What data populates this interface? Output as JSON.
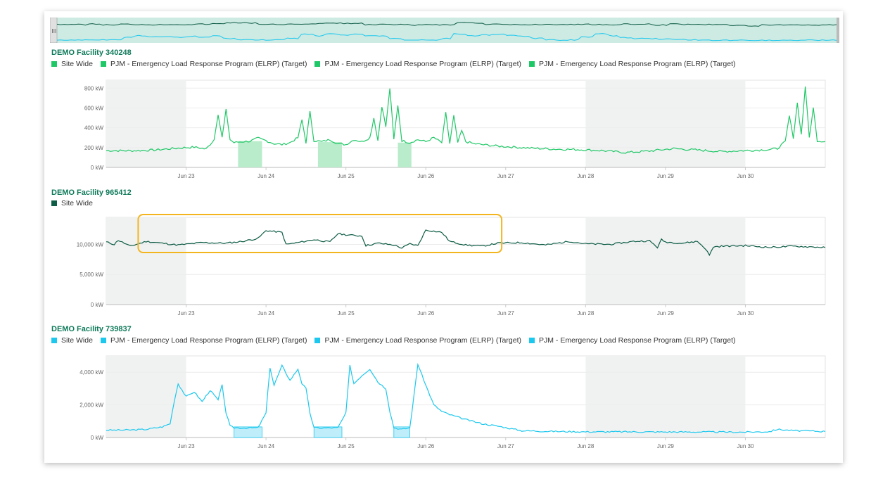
{
  "colors": {
    "green": "#1fc866",
    "dark_green": "#0d5c45",
    "cyan": "#1cc8ee",
    "title": "#0f7a5a",
    "highlight": "#f3b51f"
  },
  "shared_x_ticks": [
    "Jun 23",
    "Jun 24",
    "Jun 25",
    "Jun 26",
    "Jun 27",
    "Jun 28",
    "Jun 29",
    "Jun 30"
  ],
  "chart_data": [
    {
      "type": "line",
      "title": "DEMO Facility 340248",
      "legend": [
        "Site Wide",
        "PJM - Emergency Load Response Program (ELRP) (Target)",
        "PJM - Emergency Load Response Program (ELRP) (Target)",
        "PJM - Emergency Load Response Program (ELRP) (Target)"
      ],
      "xlabel": "",
      "ylabel": "",
      "y_ticks": [
        "0 kW",
        "200 kW",
        "400 kW",
        "600 kW",
        "800 kW"
      ],
      "ylim": [
        0,
        880
      ],
      "x_range_days": [
        22.0,
        31.0
      ],
      "weekend_shading_days": [
        [
          22.0,
          23.0
        ],
        [
          28.0,
          30.0
        ]
      ],
      "target_event_days": [
        [
          23.65,
          23.95,
          265
        ],
        [
          24.65,
          24.95,
          255
        ],
        [
          25.65,
          25.82,
          250
        ]
      ],
      "series": [
        {
          "name": "Site Wide",
          "x_days": [
            22.0,
            22.3,
            22.6,
            22.9,
            23.1,
            23.25,
            23.35,
            23.4,
            23.45,
            23.5,
            23.55,
            23.6,
            23.7,
            23.8,
            23.9,
            24.0,
            24.1,
            24.2,
            24.3,
            24.4,
            24.45,
            24.5,
            24.55,
            24.6,
            24.7,
            24.8,
            24.9,
            25.0,
            25.1,
            25.2,
            25.3,
            25.35,
            25.4,
            25.45,
            25.5,
            25.55,
            25.6,
            25.65,
            25.7,
            25.8,
            25.9,
            26.0,
            26.1,
            26.2,
            26.25,
            26.3,
            26.35,
            26.4,
            26.45,
            26.5,
            26.6,
            26.7,
            26.9,
            27.1,
            27.3,
            27.6,
            27.9,
            28.2,
            28.5,
            28.8,
            29.1,
            29.4,
            29.7,
            30.0,
            30.3,
            30.4,
            30.5,
            30.55,
            30.6,
            30.65,
            30.7,
            30.75,
            30.8,
            30.85,
            30.9,
            31.0
          ],
          "values": [
            170,
            168,
            175,
            195,
            205,
            185,
            280,
            540,
            300,
            580,
            280,
            250,
            260,
            265,
            295,
            270,
            240,
            230,
            250,
            300,
            480,
            250,
            560,
            270,
            260,
            280,
            240,
            230,
            280,
            260,
            300,
            500,
            270,
            620,
            410,
            800,
            280,
            630,
            270,
            250,
            280,
            260,
            300,
            250,
            550,
            240,
            520,
            250,
            370,
            260,
            240,
            230,
            215,
            205,
            195,
            185,
            180,
            170,
            150,
            165,
            190,
            175,
            160,
            170,
            180,
            190,
            260,
            520,
            300,
            650,
            330,
            820,
            300,
            600,
            270,
            260
          ]
        }
      ]
    },
    {
      "type": "line",
      "title": "DEMO Facility 965412",
      "legend": [
        "Site Wide"
      ],
      "xlabel": "",
      "ylabel": "",
      "y_ticks": [
        "0 kW",
        "5,000 kW",
        "10,000 kW"
      ],
      "ylim": [
        0,
        14500
      ],
      "x_range_days": [
        22.0,
        31.0
      ],
      "weekend_shading_days": [
        [
          22.0,
          23.0
        ],
        [
          28.0,
          30.0
        ]
      ],
      "highlight_box_days": [
        22.4,
        26.95
      ],
      "series": [
        {
          "name": "Site Wide",
          "x_days": [
            22.0,
            22.1,
            22.15,
            22.3,
            22.5,
            22.7,
            22.9,
            23.2,
            23.5,
            23.7,
            23.9,
            24.0,
            24.2,
            24.25,
            24.4,
            24.6,
            24.8,
            24.9,
            25.0,
            25.2,
            25.25,
            25.4,
            25.6,
            25.7,
            25.8,
            25.9,
            26.0,
            26.2,
            26.3,
            26.5,
            26.7,
            26.9,
            27.2,
            27.5,
            27.8,
            28.0,
            28.3,
            28.6,
            28.8,
            28.9,
            28.95,
            29.0,
            29.2,
            29.4,
            29.5,
            29.55,
            29.6,
            29.7,
            30.0,
            30.3,
            30.6,
            31.0
          ],
          "values": [
            10400,
            10000,
            10700,
            9700,
            10500,
            10200,
            9900,
            10300,
            10200,
            10500,
            11000,
            12300,
            12000,
            10000,
            10300,
            10800,
            10400,
            11800,
            11600,
            11400,
            9800,
            10200,
            9900,
            9400,
            10100,
            9800,
            12400,
            12000,
            10500,
            9900,
            9700,
            10200,
            10300,
            9900,
            10500,
            10100,
            10000,
            10500,
            10600,
            9500,
            10800,
            10400,
            10200,
            10500,
            9300,
            8200,
            9600,
            9700,
            9800,
            9500,
            9700,
            9500
          ]
        }
      ]
    },
    {
      "type": "line",
      "title": "DEMO Facility 739837",
      "legend": [
        "Site Wide",
        "PJM - Emergency Load Response Program (ELRP) (Target)",
        "PJM - Emergency Load Response Program (ELRP) (Target)",
        "PJM - Emergency Load Response Program (ELRP) (Target)"
      ],
      "xlabel": "",
      "ylabel": "",
      "y_ticks": [
        "0 kW",
        "2,000 kW",
        "4,000 kW"
      ],
      "ylim": [
        0,
        5000
      ],
      "x_range_days": [
        22.0,
        31.0
      ],
      "weekend_shading_days": [
        [
          22.0,
          23.0
        ],
        [
          28.0,
          30.0
        ]
      ],
      "target_event_days": [
        [
          23.6,
          23.95,
          650
        ],
        [
          24.6,
          24.95,
          650
        ],
        [
          25.6,
          25.8,
          650
        ]
      ],
      "series": [
        {
          "name": "Site Wide",
          "x_days": [
            22.0,
            22.3,
            22.5,
            22.7,
            22.8,
            22.85,
            22.9,
            23.0,
            23.1,
            23.2,
            23.3,
            23.4,
            23.45,
            23.5,
            23.55,
            23.6,
            23.7,
            23.9,
            24.0,
            24.05,
            24.1,
            24.2,
            24.3,
            24.4,
            24.45,
            24.5,
            24.55,
            24.6,
            24.7,
            24.9,
            25.0,
            25.05,
            25.1,
            25.2,
            25.3,
            25.4,
            25.5,
            25.55,
            25.6,
            25.7,
            25.8,
            25.85,
            25.9,
            26.0,
            26.1,
            26.2,
            26.3,
            26.5,
            26.7,
            26.9,
            27.2,
            27.5,
            28.0,
            28.5,
            29.0,
            29.5,
            30.0,
            30.3,
            30.4,
            30.6,
            30.8,
            31.0
          ],
          "values": [
            450,
            460,
            500,
            650,
            850,
            2200,
            3300,
            2500,
            2800,
            2200,
            2900,
            2300,
            3200,
            1500,
            700,
            600,
            580,
            600,
            1500,
            4300,
            3200,
            4400,
            3500,
            4200,
            3300,
            3000,
            1500,
            600,
            580,
            600,
            1500,
            4400,
            3300,
            3800,
            4200,
            3400,
            3000,
            1600,
            600,
            500,
            600,
            2500,
            4500,
            3200,
            2000,
            1600,
            1400,
            1100,
            850,
            700,
            420,
            380,
            350,
            350,
            340,
            340,
            330,
            360,
            500,
            420,
            400,
            370
          ]
        }
      ]
    }
  ]
}
